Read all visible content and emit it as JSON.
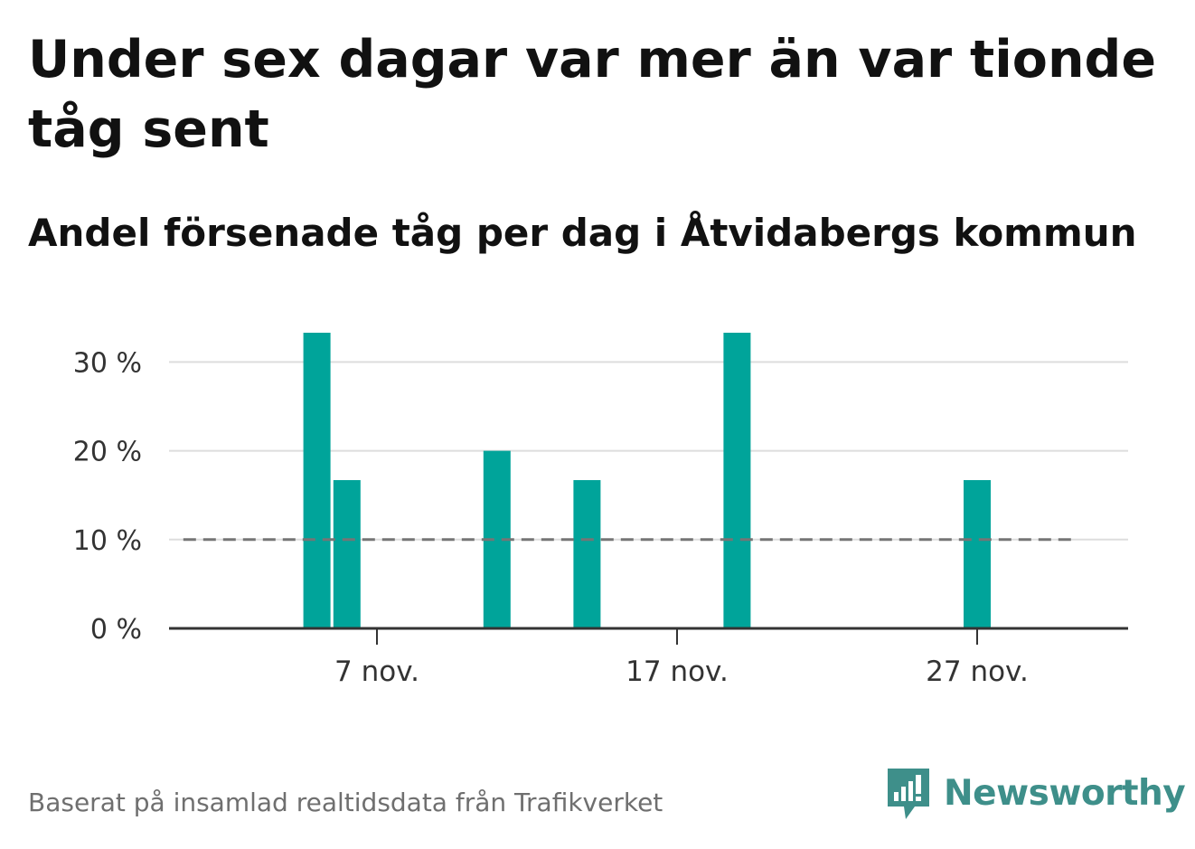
{
  "title": "Under sex dagar var mer än var tionde tåg sent",
  "subtitle": "Andel försenade tåg per dag i Åtvidabergs kommun",
  "footer": {
    "note": "Baserat på insamlad realtidsdata från Trafikverket",
    "brand": "Newsworthy"
  },
  "colors": {
    "bar": "#00a49a",
    "threshold_line": "#757575",
    "grid": "#dddddd",
    "axis": "#333333",
    "brand": "#3e8f8a"
  },
  "icons": {
    "logo": "newsworthy-logo-icon"
  },
  "chart_data": {
    "type": "bar",
    "title": "Andel försenade tåg per dag i Åtvidabergs kommun",
    "xlabel": "",
    "ylabel": "",
    "x_start_day": 1,
    "x_end_day": 30,
    "month": "nov.",
    "x_ticks": [
      {
        "day": 7,
        "label": "7 nov."
      },
      {
        "day": 17,
        "label": "17 nov."
      },
      {
        "day": 27,
        "label": "27 nov."
      }
    ],
    "y_ticks": [
      {
        "value": 0,
        "label": "0 %"
      },
      {
        "value": 10,
        "label": "10 %"
      },
      {
        "value": 20,
        "label": "20 %"
      },
      {
        "value": 30,
        "label": "30 %"
      }
    ],
    "ylim": [
      0,
      33.3
    ],
    "threshold": {
      "value": 10,
      "style": "dashed"
    },
    "grid": true,
    "series": [
      {
        "points": [
          {
            "day": 5,
            "value": 33.3
          },
          {
            "day": 6,
            "value": 16.7
          },
          {
            "day": 11,
            "value": 20
          },
          {
            "day": 14,
            "value": 16.7
          },
          {
            "day": 19,
            "value": 33.3
          },
          {
            "day": 27,
            "value": 16.7
          }
        ]
      }
    ]
  }
}
